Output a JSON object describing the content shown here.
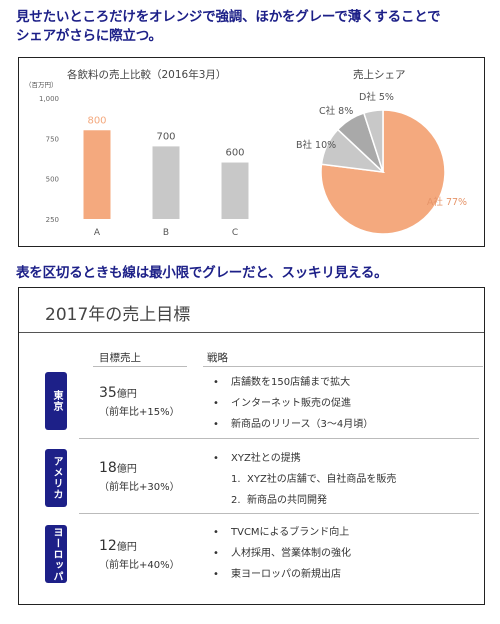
{
  "headings": {
    "top_line1": "見せたいところだけをオレンジで強調、ほかをグレーで薄くすることで",
    "top_line2": "シェアがさらに際立つ。",
    "bottom": "表を区切るときも線は最小限でグレーだと、スッキリ見える。"
  },
  "colors": {
    "accent": "#f4a97e",
    "gray": "#c8c8c8",
    "dark_gray": "#a9a9a9",
    "navy": "#1d2088"
  },
  "chart_data": [
    {
      "type": "bar",
      "title": "各飲料の売上比較（2016年3月）",
      "ylabel": "（百万円）",
      "categories": [
        "A",
        "B",
        "C"
      ],
      "values": [
        800,
        700,
        600
      ],
      "data_labels": [
        "800",
        "700",
        "600"
      ],
      "ylim": [
        250,
        1000
      ],
      "yticks": [
        "1,000",
        "750",
        "500",
        "250"
      ],
      "ytick_values": [
        1000,
        750,
        500,
        250
      ],
      "highlight": "A",
      "grid": false
    },
    {
      "type": "pie",
      "title": "売上シェア",
      "slices": [
        {
          "name": "A社",
          "value": 77,
          "label": "A社 77%"
        },
        {
          "name": "B社",
          "value": 10,
          "label": "B社 10%"
        },
        {
          "name": "C社",
          "value": 8,
          "label": "C社 8%"
        },
        {
          "name": "D社",
          "value": 5,
          "label": "D社 5%"
        }
      ]
    }
  ],
  "table": {
    "title": "2017年の売上目標",
    "col_target": "目標売上",
    "col_strategy": "戦略",
    "rows": [
      {
        "region": "東京",
        "target_value": "35",
        "target_unit": "億円",
        "target_sub": "（前年比+15%）",
        "strategy": [
          "店舗数を150店舗まで拡大",
          "インターネット販売の促進",
          "新商品のリリース（3～4月頃）"
        ]
      },
      {
        "region": "アメリカ",
        "target_value": "18",
        "target_unit": "億円",
        "target_sub": "（前年比+30%）",
        "strategy": [
          "XYZ社との提携"
        ],
        "sub_items": [
          {
            "num": "1.",
            "text": "XYZ社の店舗で、自社商品を販売"
          },
          {
            "num": "2.",
            "text": "新商品の共同開発"
          }
        ]
      },
      {
        "region": "ヨーロッパ",
        "target_value": "12",
        "target_unit": "億円",
        "target_sub": "（前年比+40%）",
        "strategy": [
          "TVCMによるブランド向上",
          "人材採用、営業体制の強化",
          "東ヨーロッパの新規出店"
        ]
      }
    ]
  }
}
